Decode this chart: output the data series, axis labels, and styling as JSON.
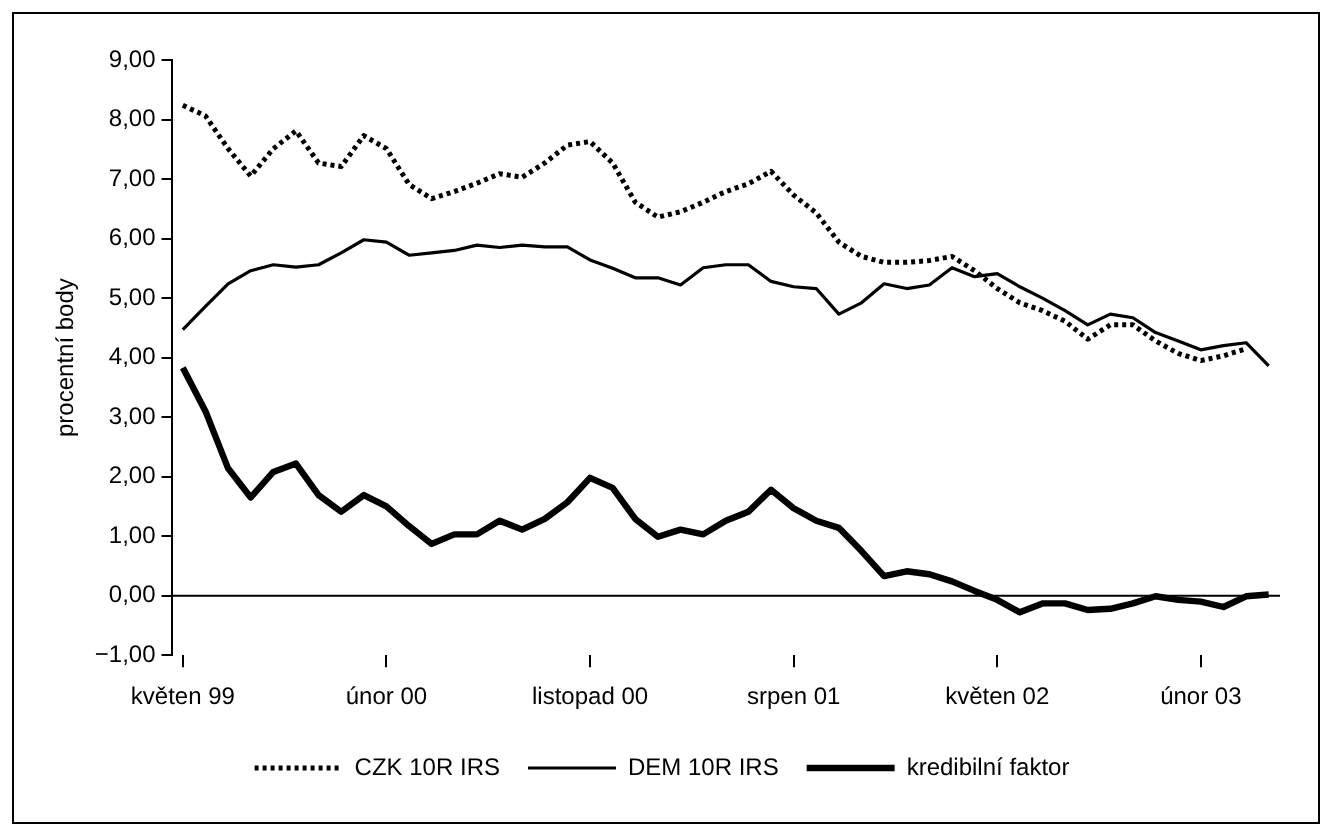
{
  "chart_data": {
    "type": "line",
    "ylabel": "procentní body",
    "categories": [
      "květen 99",
      null,
      null,
      null,
      null,
      null,
      null,
      null,
      null,
      "únor 00",
      null,
      null,
      null,
      null,
      null,
      null,
      null,
      null,
      "listopad 00",
      null,
      null,
      null,
      null,
      null,
      null,
      null,
      null,
      "srpen 01",
      null,
      null,
      null,
      null,
      null,
      null,
      null,
      null,
      "květen 02",
      null,
      null,
      null,
      null,
      null,
      null,
      null,
      null,
      "únor 03",
      null,
      null,
      null
    ],
    "series": [
      {
        "name": "CZK 10R IRS",
        "color": "#000000",
        "line_style": "dotted",
        "values": [
          8.24,
          8.06,
          7.51,
          7.05,
          7.51,
          7.81,
          7.27,
          7.21,
          7.73,
          7.51,
          6.91,
          6.67,
          6.79,
          6.93,
          7.09,
          7.03,
          7.27,
          7.57,
          7.63,
          7.27,
          6.61,
          6.36,
          6.45,
          6.61,
          6.79,
          6.92,
          7.13,
          6.73,
          6.43,
          5.94,
          5.7,
          5.6,
          5.6,
          5.63,
          5.7,
          5.46,
          5.16,
          4.92,
          4.79,
          4.61,
          4.31,
          4.55,
          4.55,
          4.28,
          4.07,
          3.95,
          4.03,
          4.15,
          null
        ]
      },
      {
        "name": "DEM 10R IRS",
        "color": "#000000",
        "line_style": "solid",
        "values": [
          4.47,
          4.86,
          5.24,
          5.46,
          5.56,
          5.52,
          5.56,
          5.76,
          5.98,
          5.94,
          5.72,
          5.76,
          5.8,
          5.89,
          5.85,
          5.89,
          5.86,
          5.86,
          5.64,
          5.5,
          5.34,
          5.34,
          5.22,
          5.51,
          5.56,
          5.56,
          5.28,
          5.19,
          5.16,
          4.73,
          4.92,
          5.24,
          5.16,
          5.22,
          5.51,
          5.36,
          5.41,
          5.19,
          5.0,
          4.79,
          4.55,
          4.73,
          4.67,
          4.42,
          4.28,
          4.13,
          4.2,
          4.25,
          3.86
        ]
      },
      {
        "name": "kredibilní faktor",
        "color": "#000000",
        "line_style": "solid",
        "values": [
          3.83,
          3.1,
          2.14,
          1.65,
          2.08,
          2.22,
          1.69,
          1.41,
          1.69,
          1.5,
          1.17,
          0.87,
          1.03,
          1.03,
          1.26,
          1.11,
          1.29,
          1.57,
          1.98,
          1.81,
          1.29,
          0.99,
          1.11,
          1.03,
          1.26,
          1.41,
          1.78,
          1.47,
          1.26,
          1.14,
          0.75,
          0.33,
          0.41,
          0.36,
          0.24,
          0.08,
          -0.07,
          -0.28,
          -0.13,
          -0.13,
          -0.24,
          -0.22,
          -0.13,
          -0.01,
          -0.07,
          -0.1,
          -0.19,
          -0.01,
          0.02
        ]
      }
    ],
    "ylim": [
      -1,
      9
    ],
    "yticks": [
      {
        "value": -1,
        "label": "−1,00"
      },
      {
        "value": 0,
        "label": "0,00"
      },
      {
        "value": 1,
        "label": "1,00"
      },
      {
        "value": 2,
        "label": "2,00"
      },
      {
        "value": 3,
        "label": "3,00"
      },
      {
        "value": 4,
        "label": "4,00"
      },
      {
        "value": 5,
        "label": "5,00"
      },
      {
        "value": 6,
        "label": "6,00"
      },
      {
        "value": 7,
        "label": "7,00"
      },
      {
        "value": 8,
        "label": "8,00"
      },
      {
        "value": 9,
        "label": "9,00"
      }
    ],
    "ref_lines": [
      {
        "axis": "y",
        "value": 0,
        "color": "#000000"
      }
    ],
    "grid": false,
    "legend": "bottom",
    "marker": "none"
  }
}
